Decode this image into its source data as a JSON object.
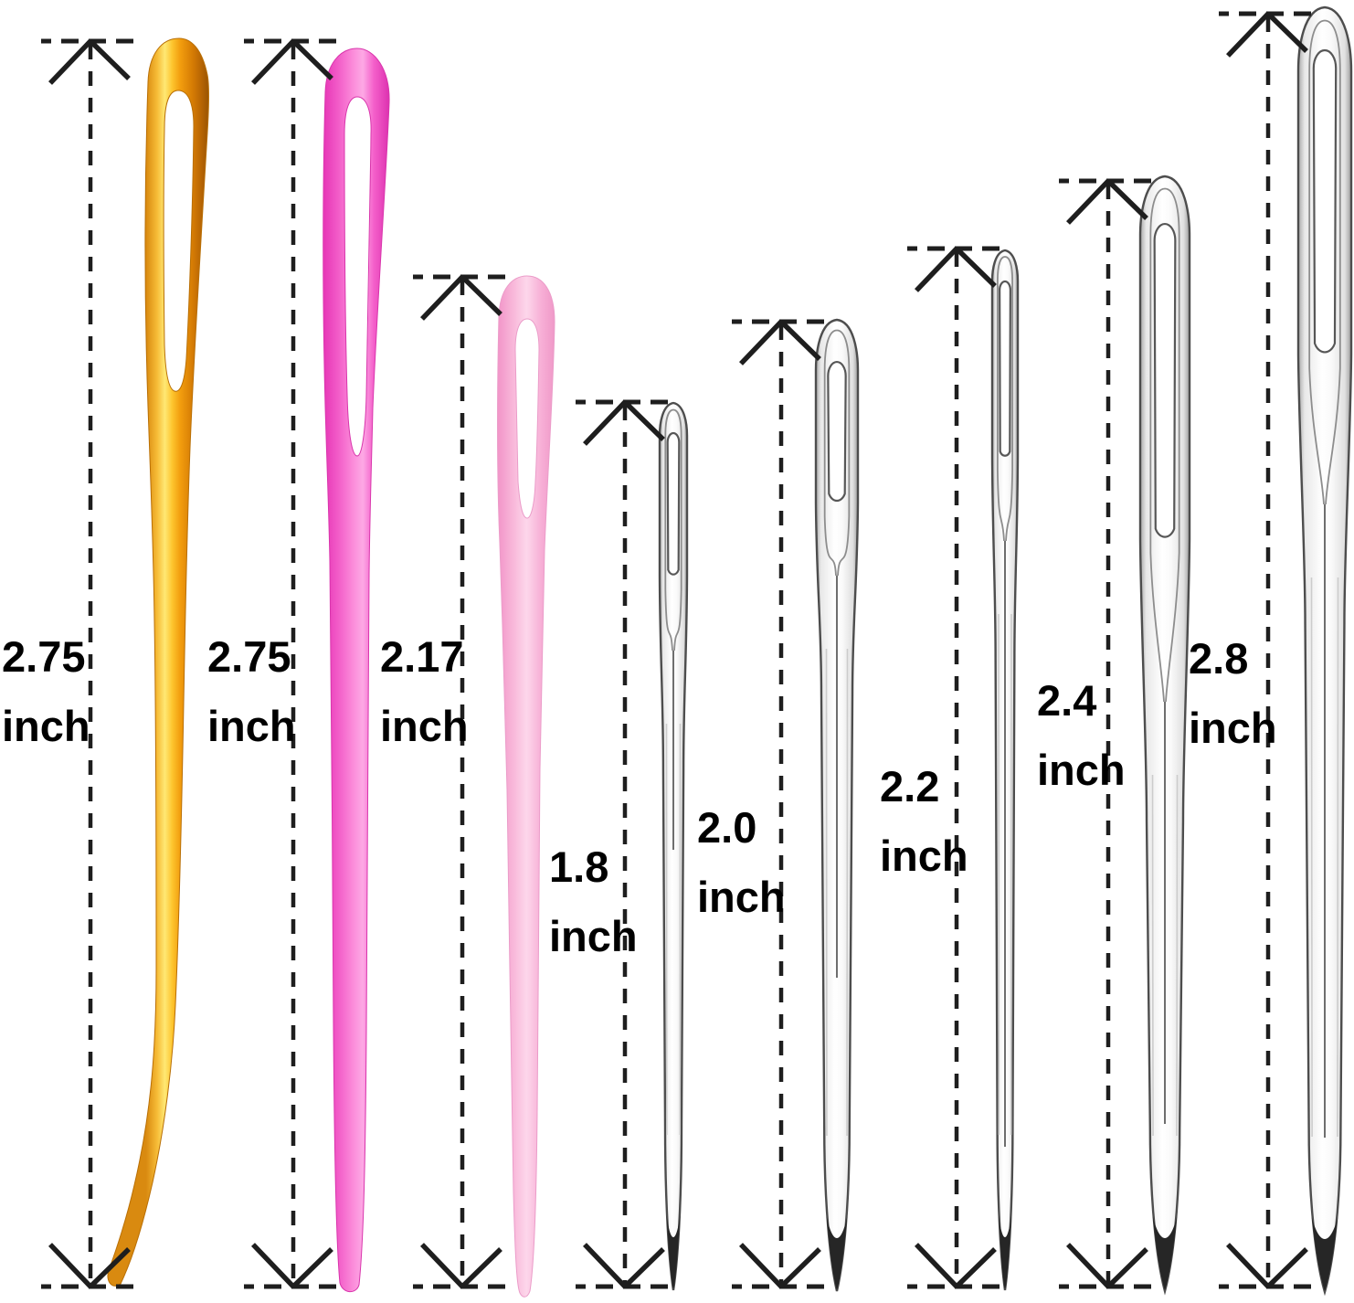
{
  "diagram": {
    "kind": "needle-size-comparison",
    "background_color": "#ffffff",
    "annotation": {
      "line_color": "#1e1e1e",
      "text_color": "#000000",
      "unit": "inch"
    }
  },
  "needles": [
    {
      "name": "gold-bent-tip-yarn-needle",
      "color": "#f0a117",
      "label": {
        "value": "2.75",
        "unit": "inch"
      }
    },
    {
      "name": "hot-pink-yarn-needle",
      "color": "#f55fc9",
      "label": {
        "value": "2.75",
        "unit": "inch"
      }
    },
    {
      "name": "light-pink-yarn-needle",
      "color": "#f9b8da",
      "label": {
        "value": "2.17",
        "unit": "inch"
      }
    },
    {
      "name": "steel-needle-small",
      "color": "#f2f2f2",
      "label": {
        "value": "1.8",
        "unit": "inch"
      }
    },
    {
      "name": "steel-needle-medium",
      "color": "#f2f2f2",
      "label": {
        "value": "2.0",
        "unit": "inch"
      }
    },
    {
      "name": "steel-needle-large",
      "color": "#f2f2f2",
      "label": {
        "value": "2.2",
        "unit": "inch"
      }
    },
    {
      "name": "steel-needle-xlarge",
      "color": "#f2f2f2",
      "label": {
        "value": "2.4",
        "unit": "inch"
      }
    },
    {
      "name": "steel-needle-xxlarge",
      "color": "#f2f2f2",
      "label": {
        "value": "2.8",
        "unit": "inch"
      }
    }
  ]
}
